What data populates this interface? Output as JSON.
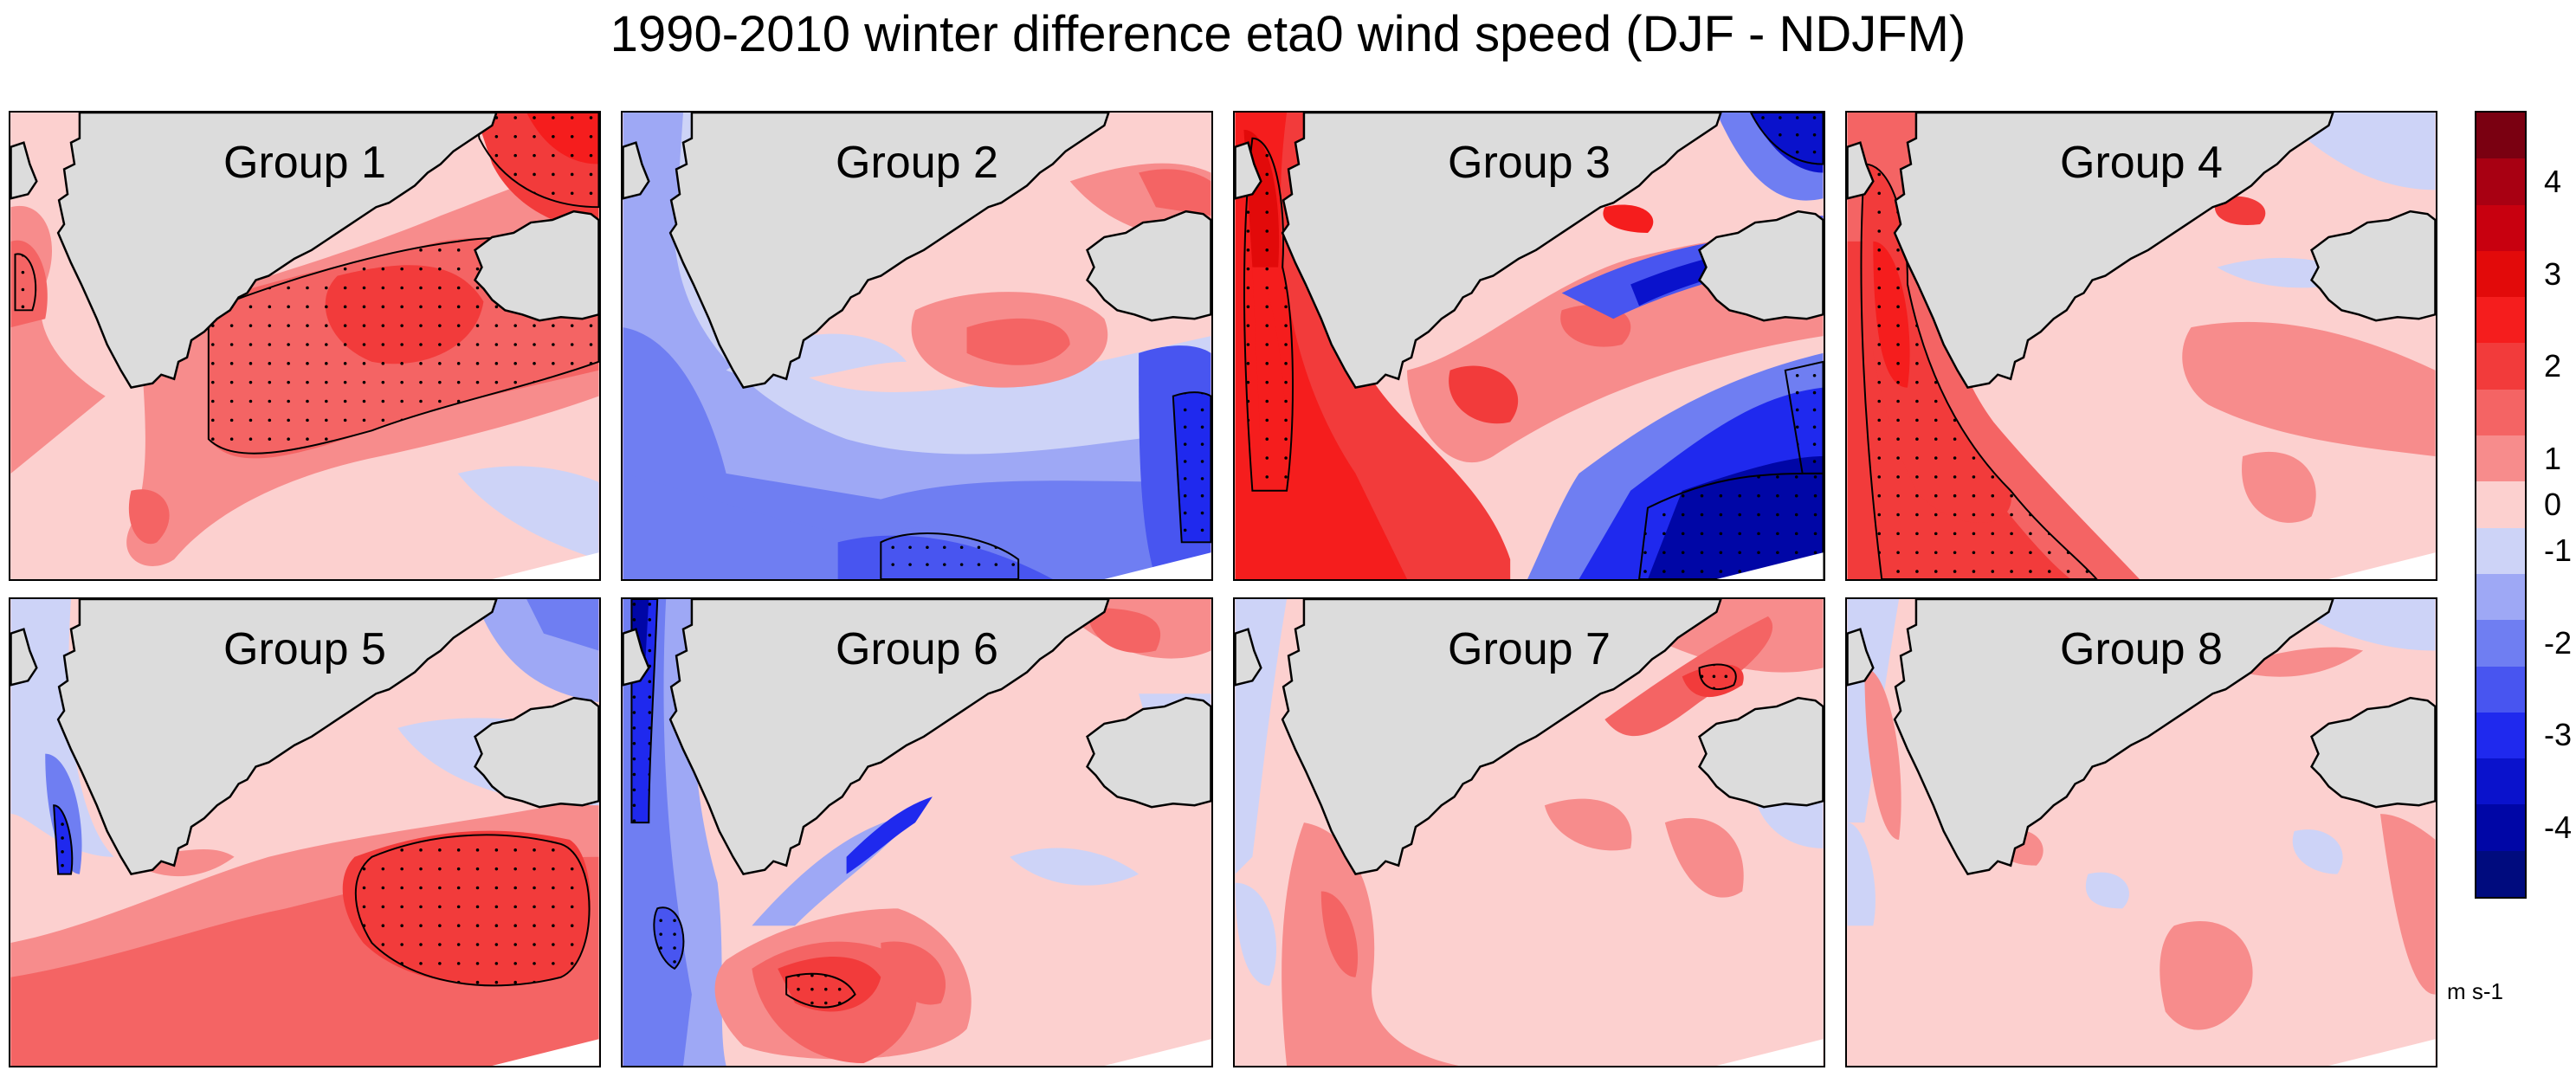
{
  "figure": {
    "title": "1990-2010 winter difference eta0 wind speed (DJF - NDJFM)",
    "units": "m s-1"
  },
  "panels": [
    {
      "label": "Group 1",
      "pattern": "pos_interior"
    },
    {
      "label": "Group 2",
      "pattern": "neg_south"
    },
    {
      "label": "Group 3",
      "pattern": "pos_west_neg_east"
    },
    {
      "label": "Group 4",
      "pattern": "pos_west"
    },
    {
      "label": "Group 5",
      "pattern": "pos_southeast"
    },
    {
      "label": "Group 6",
      "pattern": "neg_west_pos_south"
    },
    {
      "label": "Group 7",
      "pattern": "weak_pos"
    },
    {
      "label": "Group 8",
      "pattern": "weak_mixed"
    }
  ],
  "colorbar": {
    "ticks": [
      "4",
      "3",
      "2",
      "1",
      "0",
      "-1",
      "-2",
      "-3",
      "-4"
    ],
    "levels": [
      {
        "color": "#7a0011"
      },
      {
        "color": "#a80012"
      },
      {
        "color": "#c8000f"
      },
      {
        "color": "#e20a0a"
      },
      {
        "color": "#f51d1d"
      },
      {
        "color": "#f23b3b"
      },
      {
        "color": "#f46464"
      },
      {
        "color": "#f78c8c"
      },
      {
        "color": "#fcd0cf"
      },
      {
        "color": "#cdd3f7"
      },
      {
        "color": "#9ea8f5"
      },
      {
        "color": "#6f7ef2"
      },
      {
        "color": "#4855f0"
      },
      {
        "color": "#1f29ee"
      },
      {
        "color": "#0a12cc"
      },
      {
        "color": "#0006a6"
      },
      {
        "color": "#000b7e"
      }
    ]
  },
  "colors": {
    "land": "#dcdcdc",
    "coast": "#000000",
    "neutral_pos": "#fcd0cf",
    "neutral_neg": "#cdd3f7"
  }
}
